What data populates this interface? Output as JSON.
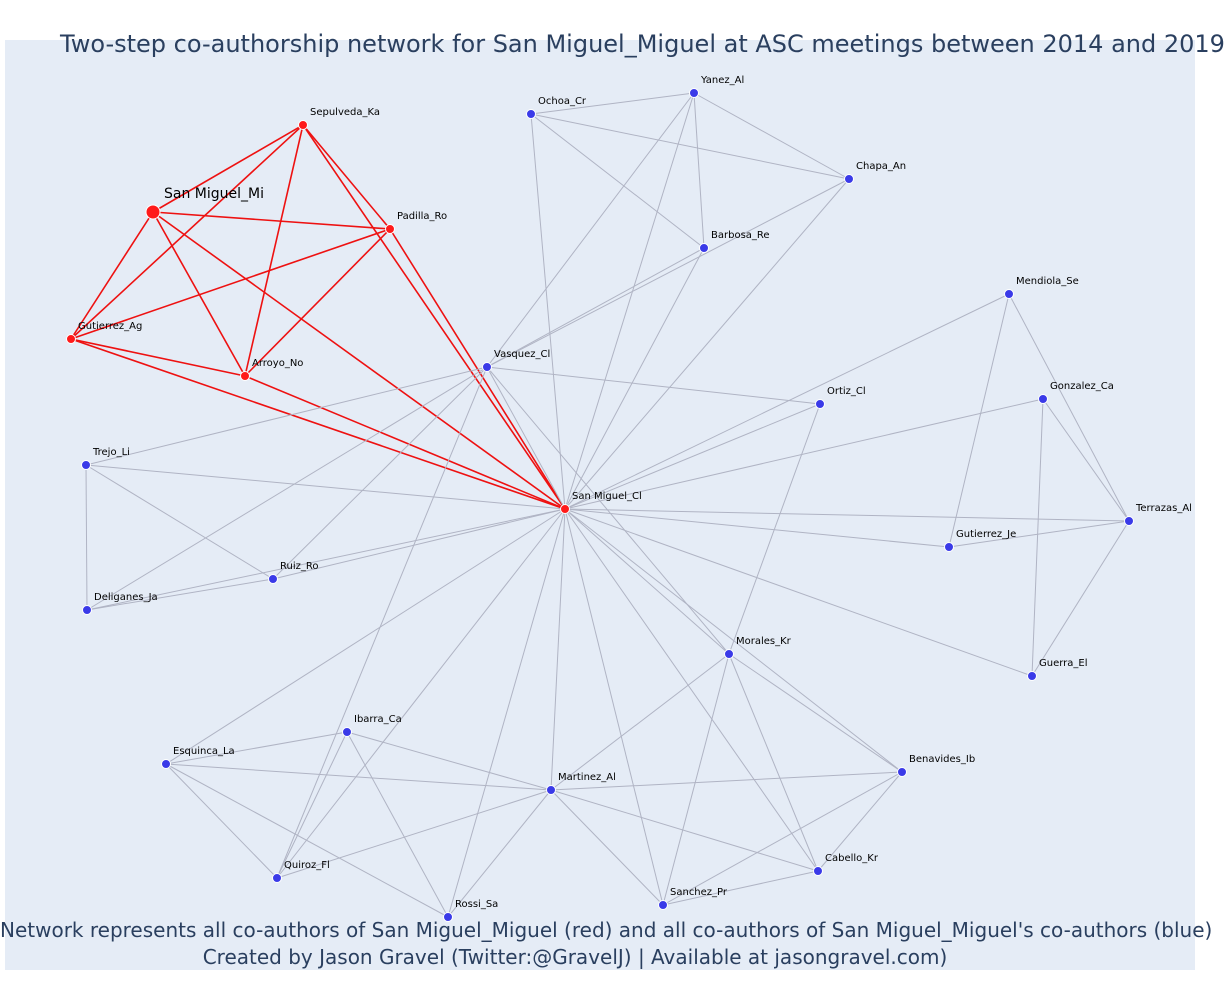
{
  "title": "Two-step co-authorship network for San Miguel_Miguel at ASC meetings between 2014 and 2019",
  "caption_line1": "Network represents all co-authors of San Miguel_Miguel (red) and all co-authors of San Miguel_Miguel's co-authors (blue)",
  "caption_line2": "Created by Jason Gravel (Twitter:@GravelJ) | Available at jasongravel.com)",
  "colors": {
    "background": "#e5ecf6",
    "red_node": "#ff1a1a",
    "blue_node": "#3a3ae8",
    "red_edge": "#ee1111",
    "grey_edge": "#b0b4c4",
    "text": "#2a3f5f"
  },
  "nodes": [
    {
      "id": "smm",
      "label": "San Miguel_Mi",
      "group": "main"
    },
    {
      "id": "sep",
      "label": "Sepulveda_Ka",
      "group": "red"
    },
    {
      "id": "pad",
      "label": "Padilla_Ro",
      "group": "red"
    },
    {
      "id": "gag",
      "label": "Gutierrez_Ag",
      "group": "red"
    },
    {
      "id": "arr",
      "label": "Arroyo_No",
      "group": "red"
    },
    {
      "id": "smc",
      "label": "San Miguel_Cl",
      "group": "red"
    },
    {
      "id": "och",
      "label": "Ochoa_Cr",
      "group": "blue"
    },
    {
      "id": "yan",
      "label": "Yanez_Al",
      "group": "blue"
    },
    {
      "id": "cha",
      "label": "Chapa_An",
      "group": "blue"
    },
    {
      "id": "bar",
      "label": "Barbosa_Re",
      "group": "blue"
    },
    {
      "id": "vas",
      "label": "Vasquez_Cl",
      "group": "blue"
    },
    {
      "id": "men",
      "label": "Mendiola_Se",
      "group": "blue"
    },
    {
      "id": "gon",
      "label": "Gonzalez_Ca",
      "group": "blue"
    },
    {
      "id": "ort",
      "label": "Ortiz_Cl",
      "group": "blue"
    },
    {
      "id": "ter",
      "label": "Terrazas_Al",
      "group": "blue"
    },
    {
      "id": "gje",
      "label": "Gutierrez_Je",
      "group": "blue"
    },
    {
      "id": "tre",
      "label": "Trejo_Li",
      "group": "blue"
    },
    {
      "id": "rui",
      "label": "Ruiz_Ro",
      "group": "blue"
    },
    {
      "id": "del",
      "label": "Deliganes_Ja",
      "group": "blue"
    },
    {
      "id": "mor",
      "label": "Morales_Kr",
      "group": "blue"
    },
    {
      "id": "gue",
      "label": "Guerra_El",
      "group": "blue"
    },
    {
      "id": "iba",
      "label": "Ibarra_Ca",
      "group": "blue"
    },
    {
      "id": "esq",
      "label": "Esquinca_La",
      "group": "blue"
    },
    {
      "id": "mar",
      "label": "Martinez_Al",
      "group": "blue"
    },
    {
      "id": "ben",
      "label": "Benavides_Ib",
      "group": "blue"
    },
    {
      "id": "qui",
      "label": "Quiroz_Fl",
      "group": "blue"
    },
    {
      "id": "ros",
      "label": "Rossi_Sa",
      "group": "blue"
    },
    {
      "id": "san",
      "label": "Sanchez_Pr",
      "group": "blue"
    },
    {
      "id": "cab",
      "label": "Cabello_Kr",
      "group": "blue"
    }
  ],
  "edges": [
    [
      "smm",
      "sep",
      "red"
    ],
    [
      "smm",
      "pad",
      "red"
    ],
    [
      "smm",
      "gag",
      "red"
    ],
    [
      "smm",
      "arr",
      "red"
    ],
    [
      "smm",
      "smc",
      "red"
    ],
    [
      "sep",
      "pad",
      "red"
    ],
    [
      "sep",
      "gag",
      "red"
    ],
    [
      "sep",
      "arr",
      "red"
    ],
    [
      "sep",
      "smc",
      "red"
    ],
    [
      "pad",
      "gag",
      "red"
    ],
    [
      "pad",
      "arr",
      "red"
    ],
    [
      "pad",
      "smc",
      "red"
    ],
    [
      "gag",
      "arr",
      "red"
    ],
    [
      "gag",
      "smc",
      "red"
    ],
    [
      "arr",
      "smc",
      "red"
    ],
    [
      "och",
      "yan",
      "grey"
    ],
    [
      "och",
      "cha",
      "grey"
    ],
    [
      "och",
      "bar",
      "grey"
    ],
    [
      "och",
      "smc",
      "grey"
    ],
    [
      "yan",
      "cha",
      "grey"
    ],
    [
      "yan",
      "bar",
      "grey"
    ],
    [
      "yan",
      "vas",
      "grey"
    ],
    [
      "yan",
      "smc",
      "grey"
    ],
    [
      "cha",
      "vas",
      "grey"
    ],
    [
      "cha",
      "smc",
      "grey"
    ],
    [
      "bar",
      "vas",
      "grey"
    ],
    [
      "bar",
      "smc",
      "grey"
    ],
    [
      "vas",
      "ort",
      "grey"
    ],
    [
      "vas",
      "tre",
      "grey"
    ],
    [
      "vas",
      "del",
      "grey"
    ],
    [
      "vas",
      "rui",
      "grey"
    ],
    [
      "vas",
      "smc",
      "grey"
    ],
    [
      "vas",
      "mor",
      "grey"
    ],
    [
      "vas",
      "qui",
      "grey"
    ],
    [
      "men",
      "smc",
      "grey"
    ],
    [
      "men",
      "gje",
      "grey"
    ],
    [
      "men",
      "ter",
      "grey"
    ],
    [
      "gon",
      "smc",
      "grey"
    ],
    [
      "gon",
      "ter",
      "grey"
    ],
    [
      "gon",
      "gue",
      "grey"
    ],
    [
      "ort",
      "smc",
      "grey"
    ],
    [
      "ort",
      "mor",
      "grey"
    ],
    [
      "ter",
      "smc",
      "grey"
    ],
    [
      "ter",
      "gje",
      "grey"
    ],
    [
      "ter",
      "gue",
      "grey"
    ],
    [
      "gje",
      "smc",
      "grey"
    ],
    [
      "tre",
      "smc",
      "grey"
    ],
    [
      "tre",
      "del",
      "grey"
    ],
    [
      "tre",
      "rui",
      "grey"
    ],
    [
      "rui",
      "smc",
      "grey"
    ],
    [
      "rui",
      "del",
      "grey"
    ],
    [
      "del",
      "smc",
      "grey"
    ],
    [
      "mor",
      "smc",
      "grey"
    ],
    [
      "mor",
      "ben",
      "grey"
    ],
    [
      "mor",
      "mar",
      "grey"
    ],
    [
      "mor",
      "san",
      "grey"
    ],
    [
      "mor",
      "cab",
      "grey"
    ],
    [
      "gue",
      "smc",
      "grey"
    ],
    [
      "iba",
      "esq",
      "grey"
    ],
    [
      "iba",
      "mar",
      "grey"
    ],
    [
      "iba",
      "qui",
      "grey"
    ],
    [
      "iba",
      "ros",
      "grey"
    ],
    [
      "esq",
      "smc",
      "grey"
    ],
    [
      "esq",
      "mar",
      "grey"
    ],
    [
      "esq",
      "qui",
      "grey"
    ],
    [
      "esq",
      "ros",
      "grey"
    ],
    [
      "mar",
      "smc",
      "grey"
    ],
    [
      "mar",
      "ben",
      "grey"
    ],
    [
      "mar",
      "qui",
      "grey"
    ],
    [
      "mar",
      "ros",
      "grey"
    ],
    [
      "mar",
      "san",
      "grey"
    ],
    [
      "mar",
      "cab",
      "grey"
    ],
    [
      "ben",
      "smc",
      "grey"
    ],
    [
      "ben",
      "san",
      "grey"
    ],
    [
      "ben",
      "cab",
      "grey"
    ],
    [
      "qui",
      "smc",
      "grey"
    ],
    [
      "ros",
      "smc",
      "grey"
    ],
    [
      "san",
      "smc",
      "grey"
    ],
    [
      "san",
      "cab",
      "grey"
    ],
    [
      "cab",
      "smc",
      "grey"
    ]
  ]
}
